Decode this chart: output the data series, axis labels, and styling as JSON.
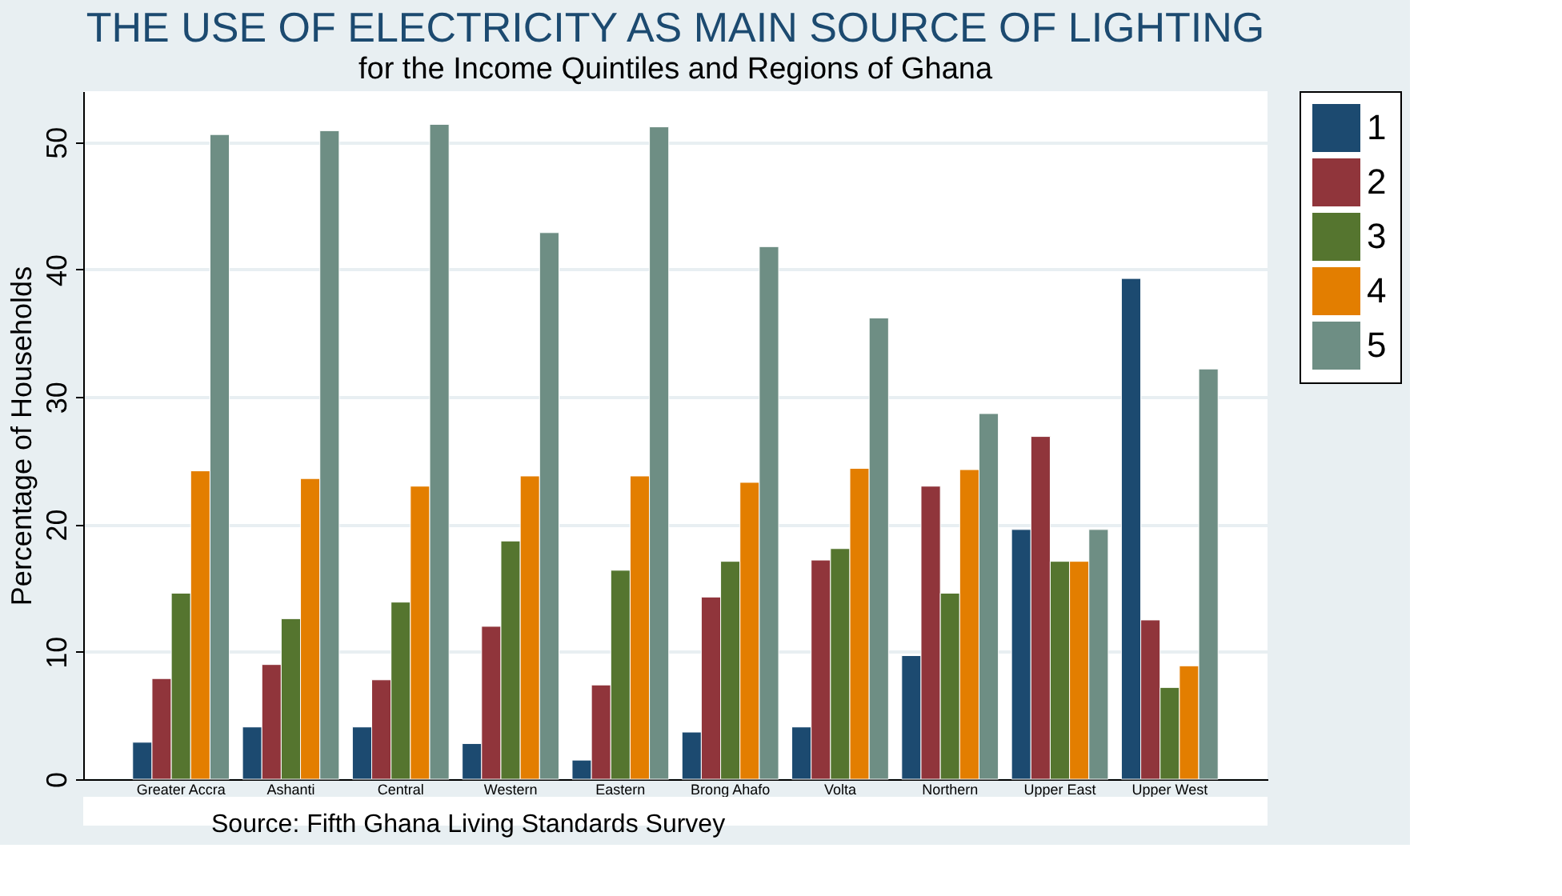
{
  "chart_data": {
    "type": "bar",
    "title": "THE USE OF ELECTRICITY AS MAIN SOURCE OF LIGHTING",
    "subtitle": "for the Income Quintiles and Regions of Ghana",
    "ylabel": "Percentage of Households",
    "categories": [
      "Greater Accra",
      "Ashanti",
      "Central",
      "Western",
      "Eastern",
      "Brong Ahafo",
      "Volta",
      "Northern",
      "Upper East",
      "Upper West"
    ],
    "series": [
      {
        "name": "1",
        "color": "#1c4a70",
        "values": [
          2.9,
          4.1,
          4.1,
          2.8,
          1.5,
          3.7,
          4.1,
          9.7,
          19.6,
          39.3
        ]
      },
      {
        "name": "2",
        "color": "#90353b",
        "values": [
          7.9,
          9.0,
          7.8,
          12.0,
          7.4,
          14.3,
          17.2,
          23.0,
          26.9,
          12.5
        ]
      },
      {
        "name": "3",
        "color": "#55752f",
        "values": [
          14.6,
          12.6,
          13.9,
          18.7,
          16.4,
          17.1,
          18.1,
          14.6,
          17.1,
          7.2
        ]
      },
      {
        "name": "4",
        "color": "#e37e00",
        "values": [
          24.2,
          23.6,
          23.0,
          23.8,
          23.8,
          23.3,
          24.4,
          24.3,
          17.1,
          8.9
        ]
      },
      {
        "name": "5",
        "color": "#6e8e84",
        "values": [
          50.6,
          50.9,
          51.4,
          42.9,
          51.2,
          41.8,
          36.2,
          28.7,
          19.6,
          32.2
        ]
      }
    ],
    "ylim": [
      0,
      54
    ],
    "yticks": [
      0,
      10,
      20,
      30,
      40,
      50
    ],
    "grid": "y",
    "legend": "right",
    "annotations": [
      "Source: Fifth Ghana Living Standards Survey"
    ]
  }
}
